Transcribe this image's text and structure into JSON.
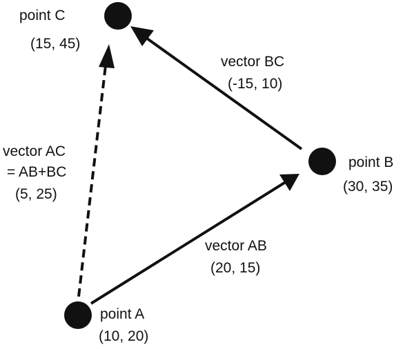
{
  "points": {
    "a": {
      "name": "point A",
      "coords": "(10, 20)"
    },
    "b": {
      "name": "point B",
      "coords": "(30, 35)"
    },
    "c": {
      "name": "point C",
      "coords": "(15, 45)"
    }
  },
  "vectors": {
    "ab": {
      "name": "vector AB",
      "components": "(20, 15)"
    },
    "bc": {
      "name": "vector BC",
      "components": "(-15, 10)"
    },
    "ac": {
      "name": "vector AC",
      "formula": "= AB+BC",
      "components": "(5, 25)"
    }
  },
  "colors": {
    "ink": "#111111",
    "background": "#ffffff"
  }
}
